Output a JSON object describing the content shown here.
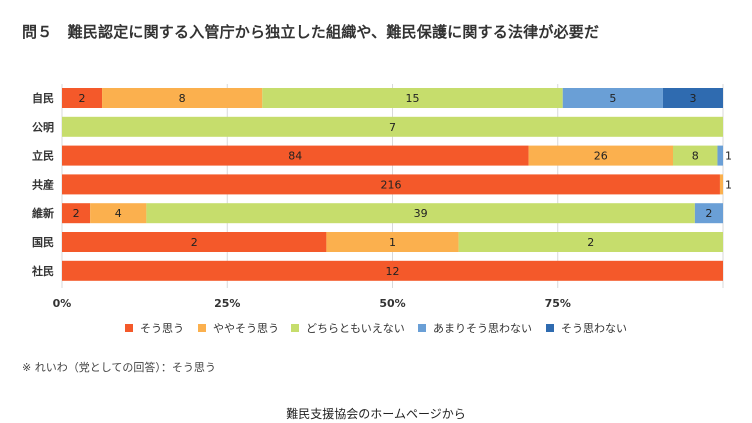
{
  "title": "問５　難民認定に関する入管庁から独立した組織や、難民保護に関する法律が必要だ",
  "note": "※ れいわ（党としての回答）：そう思う",
  "footer": "難民支援協会のホームページから",
  "chart_data": {
    "type": "bar",
    "orientation": "horizontal",
    "stacked": true,
    "normalized": true,
    "categories": [
      "自民",
      "公明",
      "立民",
      "共産",
      "維新",
      "国民",
      "社民"
    ],
    "series": [
      {
        "name": "そう思う",
        "color": "#f4592a",
        "values": [
          2,
          0,
          84,
          216,
          2,
          2,
          12
        ]
      },
      {
        "name": "ややそう思う",
        "color": "#fbb04e",
        "values": [
          8,
          0,
          26,
          1,
          4,
          1,
          0
        ]
      },
      {
        "name": "どちらともいえない",
        "color": "#c6dd6c",
        "values": [
          15,
          7,
          8,
          0,
          39,
          2,
          0
        ]
      },
      {
        "name": "あまりそう思わない",
        "color": "#6a9fd6",
        "values": [
          5,
          0,
          1,
          0,
          2,
          0,
          0
        ]
      },
      {
        "name": "そう思わない",
        "color": "#2f6bb0",
        "values": [
          3,
          0,
          0,
          0,
          0,
          0,
          0
        ]
      }
    ],
    "x_ticks": [
      "0%",
      "25%",
      "50%",
      "75%"
    ],
    "xlim": [
      0,
      100
    ],
    "grid": true,
    "legend": "bottom"
  }
}
